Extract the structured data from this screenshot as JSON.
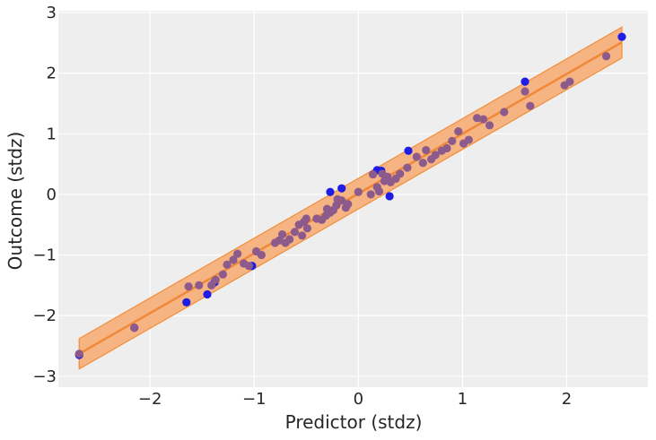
{
  "chart_data": {
    "type": "scatter",
    "title": "",
    "xlabel": "Predictor (stdz)",
    "ylabel": "Outcome (stdz)",
    "xlim": [
      -2.88,
      2.78
    ],
    "ylim": [
      -3.18,
      3.03
    ],
    "x_ticks": [
      -2,
      -1,
      0,
      1,
      2
    ],
    "x_tick_labels": [
      "−2",
      "−1",
      "0",
      "1",
      "2"
    ],
    "y_ticks": [
      -3,
      -2,
      -1,
      0,
      1,
      2,
      3
    ],
    "y_tick_labels": [
      "−3",
      "−2",
      "−1",
      "0",
      "1",
      "2",
      "3"
    ],
    "grid": true,
    "colors": {
      "background": "#eeeeee",
      "grid": "#ffffff",
      "band_fill": "#f4b07a",
      "band_edge": "#f28e3b",
      "line": "#f0883a",
      "observed": "#1d1de6",
      "predicted": "#8c5b8c"
    },
    "line": {
      "x": [
        -2.68,
        2.53
      ],
      "y": [
        -2.63,
        2.51
      ]
    },
    "band": {
      "x": [
        -2.68,
        2.53
      ],
      "lower": [
        -2.88,
        2.25
      ],
      "upper": [
        -2.38,
        2.76
      ]
    },
    "observed_points": [
      [
        -2.68,
        -2.65
      ],
      [
        -2.15,
        -2.2
      ],
      [
        -1.65,
        -1.78
      ],
      [
        -1.45,
        -1.65
      ],
      [
        -1.38,
        -1.45
      ],
      [
        -1.02,
        -1.18
      ],
      [
        -0.27,
        0.04
      ],
      [
        -0.16,
        0.1
      ],
      [
        0.18,
        0.4
      ],
      [
        0.22,
        0.39
      ],
      [
        0.3,
        -0.03
      ],
      [
        0.48,
        0.72
      ],
      [
        1.6,
        1.86
      ],
      [
        2.53,
        2.6
      ]
    ],
    "predicted_points": [
      [
        -2.68,
        -2.63
      ],
      [
        -2.15,
        -2.2
      ],
      [
        -1.63,
        -1.52
      ],
      [
        -1.53,
        -1.5
      ],
      [
        -1.41,
        -1.5
      ],
      [
        -1.37,
        -1.41
      ],
      [
        -1.3,
        -1.32
      ],
      [
        -1.26,
        -1.16
      ],
      [
        -1.2,
        -1.08
      ],
      [
        -1.16,
        -0.98
      ],
      [
        -1.1,
        -1.14
      ],
      [
        -1.05,
        -1.18
      ],
      [
        -0.98,
        -0.94
      ],
      [
        -0.93,
        -1.0
      ],
      [
        -0.8,
        -0.8
      ],
      [
        -0.76,
        -0.76
      ],
      [
        -0.73,
        -0.66
      ],
      [
        -0.7,
        -0.8
      ],
      [
        -0.66,
        -0.74
      ],
      [
        -0.61,
        -0.62
      ],
      [
        -0.57,
        -0.5
      ],
      [
        -0.54,
        -0.68
      ],
      [
        -0.52,
        -0.45
      ],
      [
        -0.5,
        -0.4
      ],
      [
        -0.49,
        -0.56
      ],
      [
        -0.4,
        -0.4
      ],
      [
        -0.35,
        -0.42
      ],
      [
        -0.31,
        -0.35
      ],
      [
        -0.3,
        -0.24
      ],
      [
        -0.27,
        -0.3
      ],
      [
        -0.24,
        -0.26
      ],
      [
        -0.21,
        -0.18
      ],
      [
        -0.2,
        -0.08
      ],
      [
        -0.16,
        -0.1
      ],
      [
        -0.12,
        -0.22
      ],
      [
        -0.1,
        -0.16
      ],
      [
        0.0,
        0.04
      ],
      [
        0.14,
        0.33
      ],
      [
        0.18,
        0.12
      ],
      [
        0.2,
        0.05
      ],
      [
        0.23,
        0.34
      ],
      [
        0.25,
        0.22
      ],
      [
        0.28,
        0.29
      ],
      [
        0.31,
        0.2
      ],
      [
        0.36,
        0.26
      ],
      [
        0.47,
        0.44
      ],
      [
        0.62,
        0.52
      ],
      [
        0.65,
        0.73
      ],
      [
        0.7,
        0.58
      ],
      [
        0.74,
        0.65
      ],
      [
        0.8,
        0.72
      ],
      [
        0.85,
        0.76
      ],
      [
        0.9,
        0.88
      ],
      [
        1.01,
        0.84
      ],
      [
        1.06,
        0.9
      ],
      [
        1.14,
        1.26
      ],
      [
        1.2,
        1.24
      ],
      [
        1.26,
        1.14
      ],
      [
        1.4,
        1.36
      ],
      [
        1.6,
        1.7
      ],
      [
        1.65,
        1.46
      ],
      [
        1.98,
        1.8
      ],
      [
        2.03,
        1.86
      ],
      [
        2.38,
        2.28
      ],
      [
        0.56,
        0.62
      ],
      [
        0.96,
        1.04
      ],
      [
        0.12,
        0.0
      ],
      [
        0.4,
        0.34
      ]
    ]
  }
}
